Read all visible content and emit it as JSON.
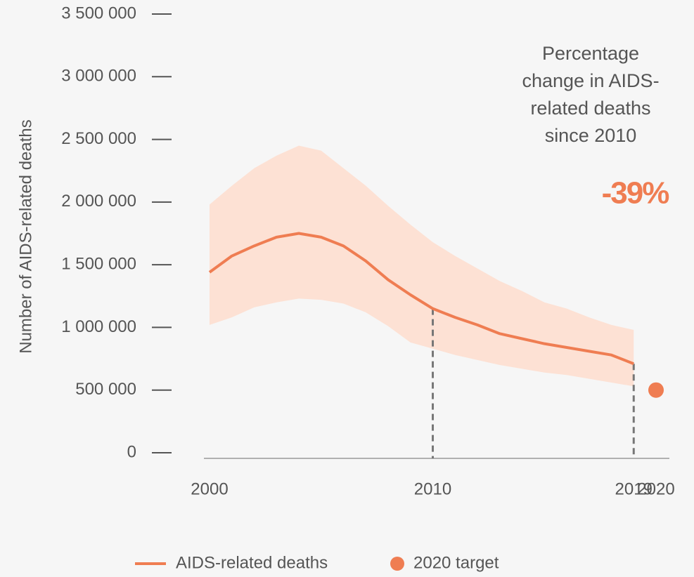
{
  "chart_data": {
    "type": "line",
    "ylabel": "Number of AIDS-related deaths",
    "xlim": [
      2000,
      2020
    ],
    "ylim": [
      0,
      3500000
    ],
    "xticks": [
      2000,
      2010,
      2019,
      2020
    ],
    "yticks": [
      0,
      {
        "value": 500000,
        "label": "500 000"
      },
      {
        "value": 1000000,
        "label": "1 000 000"
      },
      {
        "value": 1500000,
        "label": "1 500 000"
      },
      {
        "value": 2000000,
        "label": "2 000 000"
      },
      {
        "value": 2500000,
        "label": "2 500 000"
      },
      {
        "value": 3000000,
        "label": "3 000 000"
      },
      {
        "value": 3500000,
        "label": "3 500 000"
      }
    ],
    "dropline_x": [
      2010,
      2019
    ],
    "annotation": [
      "Percentage",
      "change in AIDS-",
      "related deaths",
      "since 2010"
    ],
    "highlight": "-39%",
    "series": [
      {
        "name": "AIDS-related deaths",
        "color": "#ef7d52",
        "band_color": "#fde1d4",
        "x": [
          2000,
          2001,
          2002,
          2003,
          2004,
          2005,
          2006,
          2007,
          2008,
          2009,
          2010,
          2011,
          2012,
          2013,
          2014,
          2015,
          2016,
          2017,
          2018,
          2019
        ],
        "values": [
          1440000,
          1570000,
          1650000,
          1720000,
          1750000,
          1720000,
          1650000,
          1530000,
          1380000,
          1260000,
          1150000,
          1080000,
          1020000,
          950000,
          910000,
          870000,
          840000,
          810000,
          780000,
          710000
        ],
        "upper": [
          1980000,
          2130000,
          2270000,
          2370000,
          2450000,
          2410000,
          2270000,
          2130000,
          1970000,
          1820000,
          1680000,
          1570000,
          1470000,
          1370000,
          1290000,
          1200000,
          1150000,
          1080000,
          1020000,
          980000
        ],
        "lower": [
          1020000,
          1080000,
          1160000,
          1200000,
          1230000,
          1220000,
          1190000,
          1120000,
          1010000,
          880000,
          830000,
          780000,
          740000,
          700000,
          670000,
          640000,
          620000,
          590000,
          560000,
          530000
        ]
      },
      {
        "name": "2020 target",
        "color": "#ef7d52",
        "type": "scatter",
        "x": [
          2020
        ],
        "values": [
          500000
        ]
      }
    ]
  }
}
